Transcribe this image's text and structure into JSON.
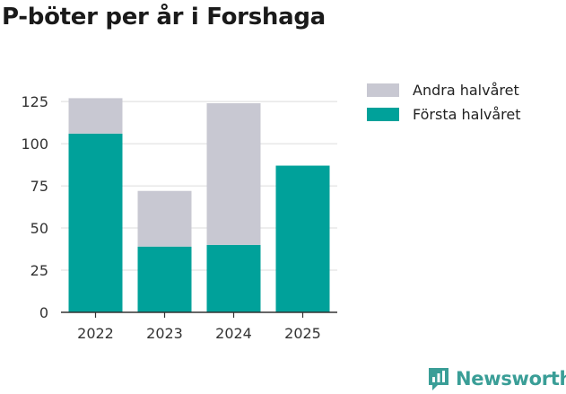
{
  "chart_data": {
    "type": "bar",
    "stacked": true,
    "title": "P-böter per år i Forshaga",
    "xlabel": "",
    "ylabel": "",
    "categories": [
      "2022",
      "2023",
      "2024",
      "2025"
    ],
    "series": [
      {
        "name": "Första halvåret",
        "color": "#00a19a",
        "values": [
          106,
          39,
          40,
          87
        ]
      },
      {
        "name": "Andra halvåret",
        "color": "#c8c8d2",
        "values": [
          21,
          33,
          84,
          0
        ]
      }
    ],
    "ylim": [
      0,
      132
    ],
    "yticks": [
      0,
      25,
      50,
      75,
      100,
      125
    ],
    "grid": true,
    "legend": "top-right",
    "legend_order": [
      "Andra halvåret",
      "Första halvåret"
    ]
  },
  "branding": {
    "name": "Newsworthy",
    "logo_icon": "bar-chart-speech-icon",
    "color": "#3a9e97"
  }
}
